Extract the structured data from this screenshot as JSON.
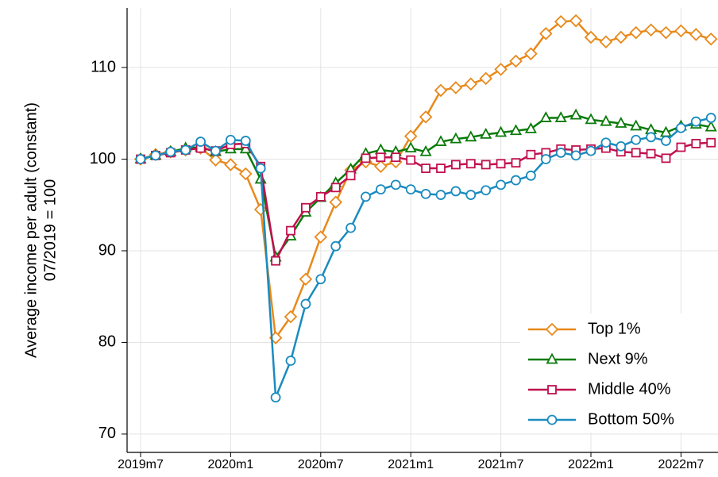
{
  "chart_data": {
    "type": "line",
    "ylabel": [
      "Average income per adult (constant)",
      "07/2019 = 100"
    ],
    "categories": [
      "2019m7",
      null,
      null,
      null,
      null,
      null,
      "2020m1",
      null,
      null,
      null,
      null,
      null,
      "2020m7",
      null,
      null,
      null,
      null,
      null,
      "2021m1",
      null,
      null,
      null,
      null,
      null,
      "2021m7",
      null,
      null,
      null,
      null,
      null,
      "2022m1",
      null,
      null,
      null,
      null,
      null,
      "2022m7",
      null,
      null
    ],
    "ylim": [
      68,
      116.5
    ],
    "yticks": [
      70,
      80,
      90,
      100,
      110
    ],
    "grid": true,
    "legend": "bottom-right",
    "series": [
      {
        "name": "Top 1%",
        "color": "#e8891b",
        "marker": "diamond",
        "values": [
          100,
          100.5,
          100.8,
          101,
          101.2,
          99.9,
          99.4,
          98.4,
          94.5,
          80.5,
          82.8,
          86.9,
          91.5,
          95.3,
          98.8,
          99.7,
          99.2,
          99.7,
          102.5,
          104.6,
          107.5,
          107.8,
          108.2,
          108.8,
          109.8,
          110.7,
          111.5,
          113.7,
          115,
          115.1,
          113.3,
          112.8,
          113.3,
          113.8,
          114.1,
          113.8,
          114,
          113.6,
          113.1
        ]
      },
      {
        "name": "Next 9%",
        "color": "#0a7a0a",
        "marker": "triangle",
        "values": [
          100,
          100.4,
          100.8,
          101.2,
          101.3,
          100.8,
          101.1,
          101.1,
          97.8,
          89.3,
          91.6,
          94.2,
          95.8,
          97.4,
          98.9,
          100.6,
          101,
          100.8,
          101.2,
          100.8,
          101.9,
          102.2,
          102.4,
          102.7,
          102.9,
          103.1,
          103.3,
          104.5,
          104.5,
          104.8,
          104.3,
          104.1,
          103.9,
          103.6,
          103.2,
          102.9,
          103.6,
          103.8,
          103.5
        ]
      },
      {
        "name": "Middle 40%",
        "color": "#c0104e",
        "marker": "square",
        "values": [
          100,
          100.4,
          100.7,
          101,
          101.2,
          100.9,
          101.6,
          101.7,
          99.2,
          88.9,
          92.2,
          94.7,
          95.9,
          96.9,
          98.2,
          100.1,
          100.2,
          100.2,
          99.9,
          99,
          99,
          99.4,
          99.5,
          99.4,
          99.5,
          99.6,
          100.5,
          100.7,
          101.1,
          101,
          101.1,
          101.2,
          100.8,
          100.7,
          100.6,
          100.1,
          101.3,
          101.7,
          101.8
        ]
      },
      {
        "name": "Bottom 50%",
        "color": "#1a8bbf",
        "marker": "circle",
        "values": [
          100,
          100.4,
          100.8,
          101,
          101.9,
          100.9,
          102.1,
          102,
          99,
          74,
          78,
          84.2,
          86.9,
          90.5,
          92.5,
          95.9,
          96.7,
          97.2,
          96.7,
          96.2,
          96.1,
          96.5,
          96.1,
          96.6,
          97.2,
          97.7,
          98.2,
          100,
          100.7,
          100.4,
          100.9,
          101.8,
          101.4,
          102.1,
          102.4,
          102,
          103.4,
          104.1,
          104.5
        ]
      }
    ]
  }
}
